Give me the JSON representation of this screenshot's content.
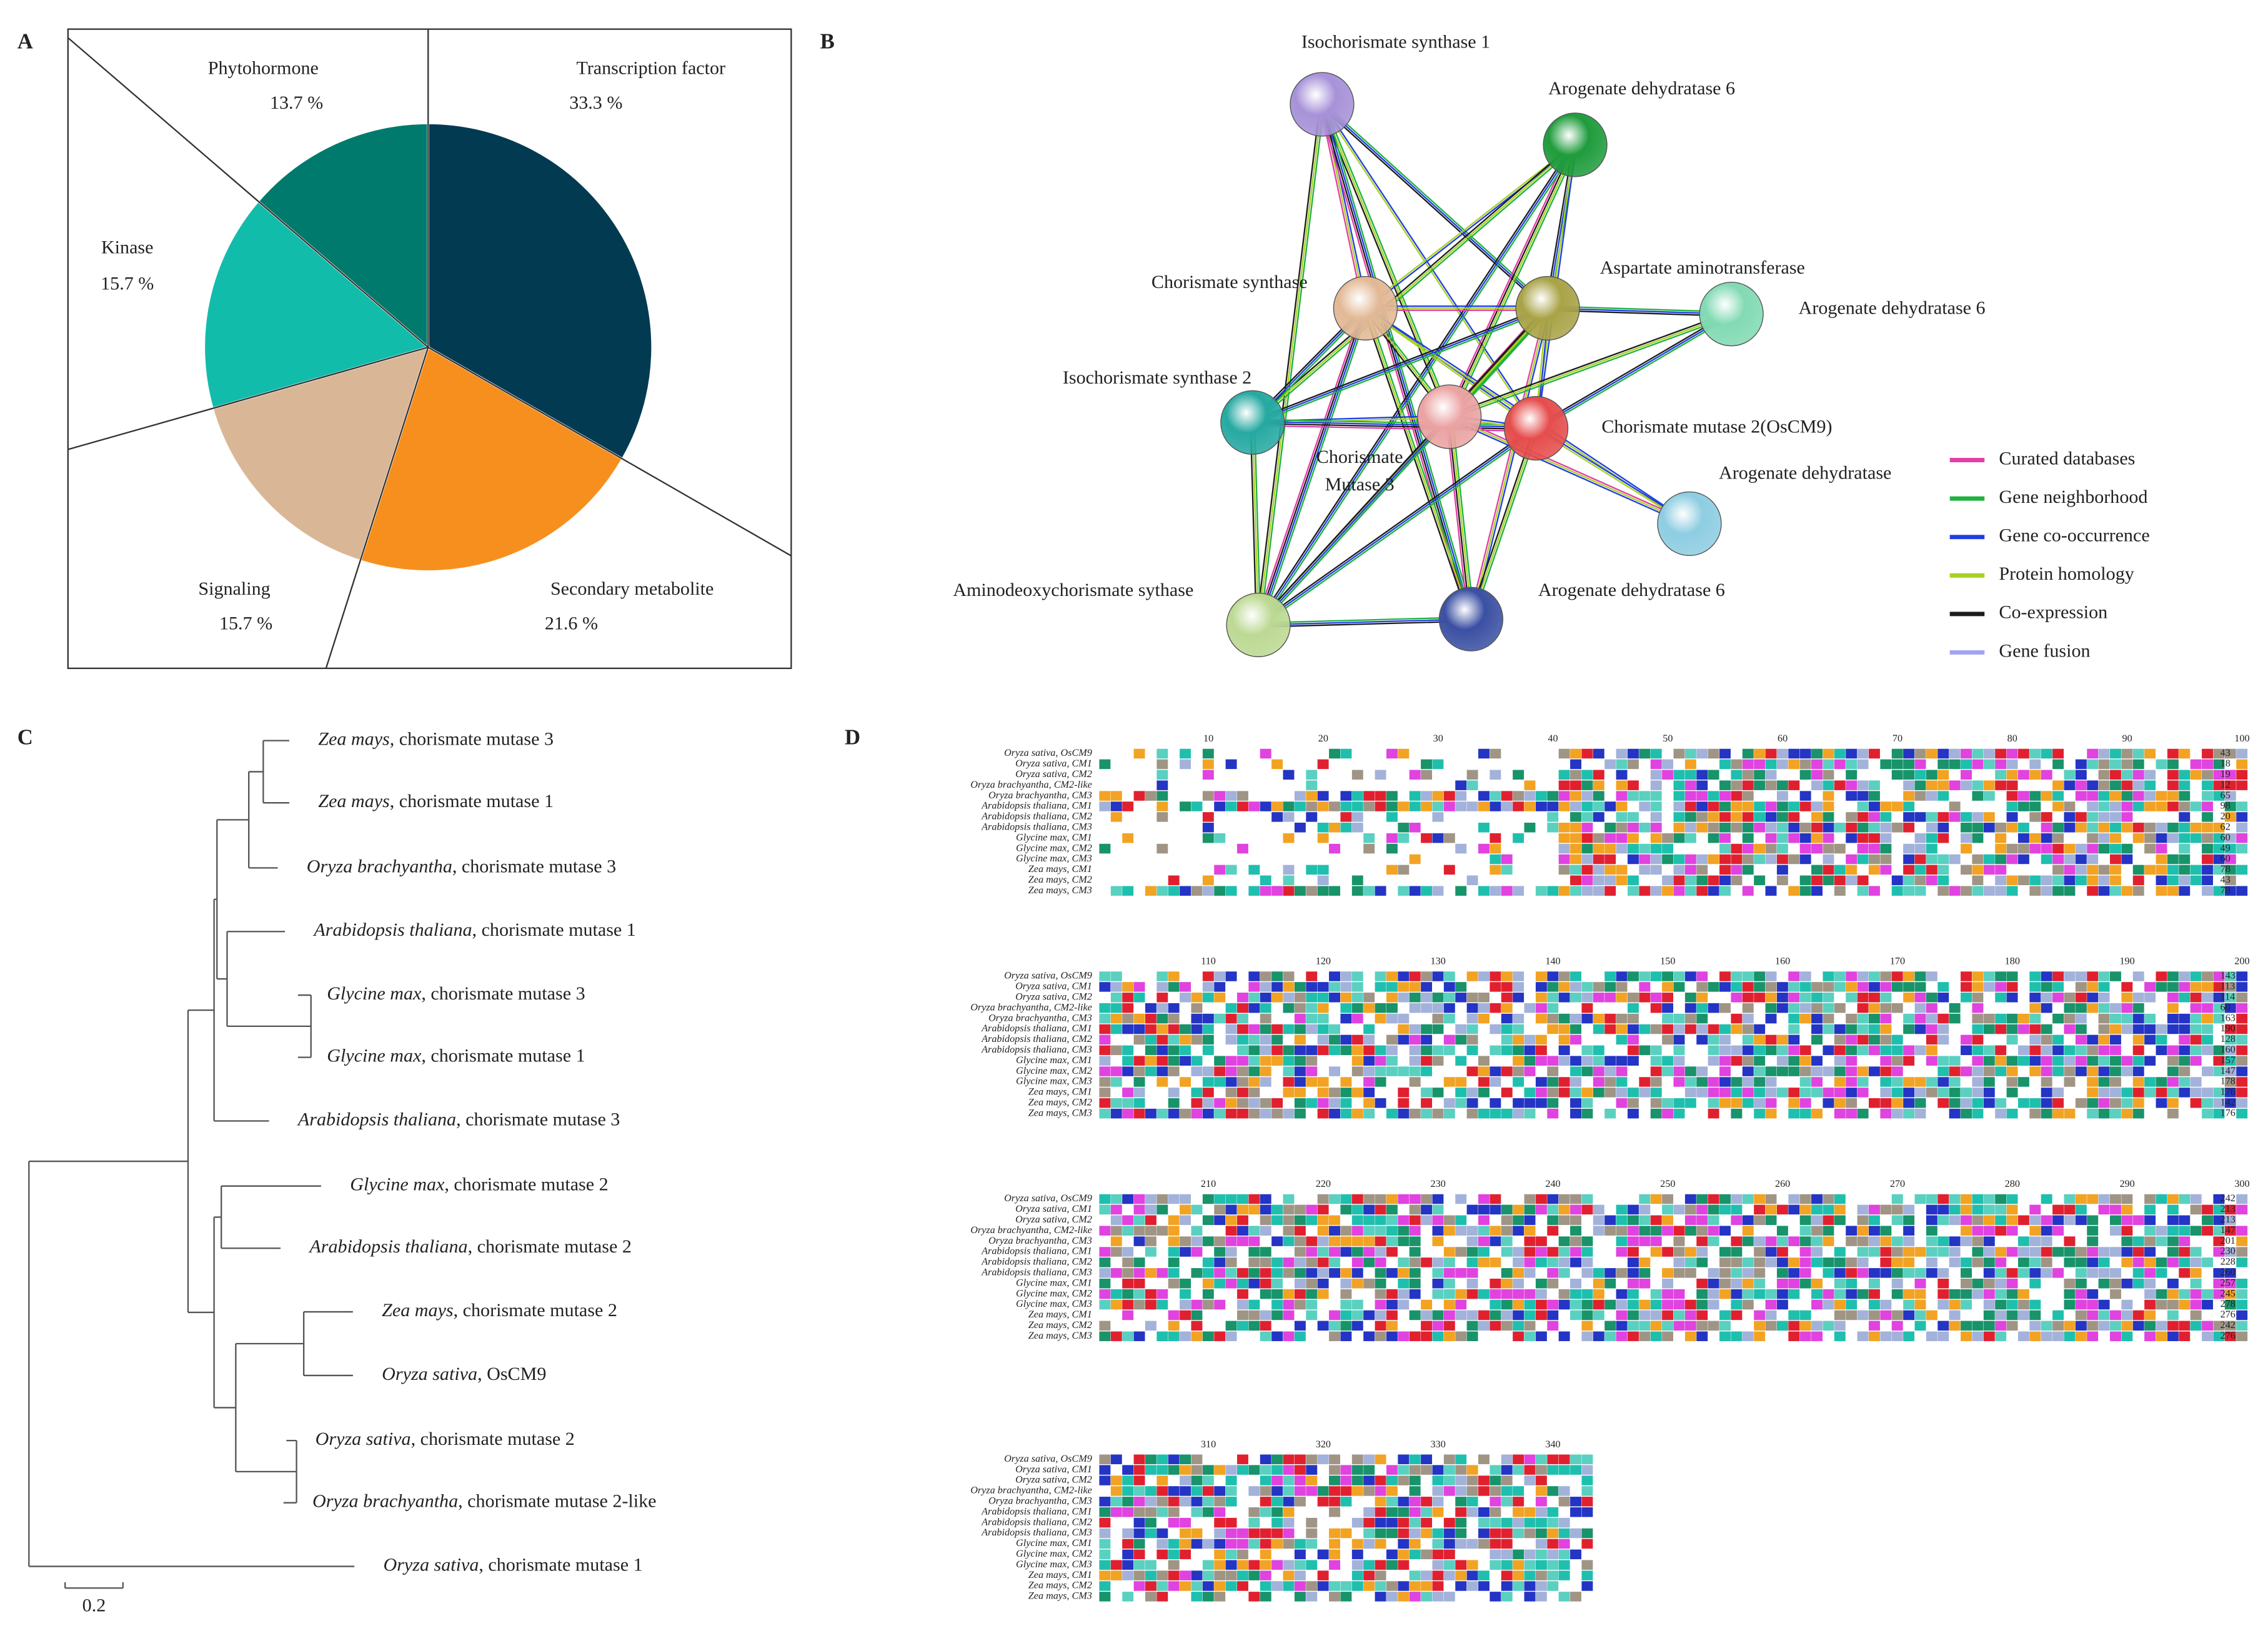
{
  "panels": {
    "a": "A",
    "b": "B",
    "c": "C",
    "d": "D"
  },
  "chart_data": {
    "type": "pie",
    "categories": [
      "Transcription factor",
      "Secondary metabolite",
      "Signaling",
      "Kinase",
      "Phytohormone"
    ],
    "values": [
      33.3,
      21.6,
      15.7,
      15.7,
      13.7
    ],
    "value_labels": [
      "33.3 %",
      "21.6 %",
      "15.7 %",
      "15.7 %",
      "13.7 %"
    ],
    "colors": [
      "#023a52",
      "#f78f1e",
      "#d9b796",
      "#12bcab",
      "#007a6c"
    ]
  },
  "network": {
    "nodes": [
      {
        "label": [
          "Isochorismate synthase 1"
        ],
        "color": "#a792d8"
      },
      {
        "label": [
          "Arogenate dehydratase 6"
        ],
        "color": "#1f9c3c"
      },
      {
        "label": [
          "Chorismate synthase"
        ],
        "color": "#e2b996"
      },
      {
        "label": [
          "Aspartate aminotransferase"
        ],
        "color": "#a9a347"
      },
      {
        "label": [
          "Arogenate dehydratase 6"
        ],
        "color": "#82dab4"
      },
      {
        "label": [
          "Isochorismate synthase 2"
        ],
        "color": "#26a9a2"
      },
      {
        "label": [
          "Chorismate",
          "Mutase 3"
        ],
        "color": "#eba3a3"
      },
      {
        "label": [
          "Chorismate mutase 2(OsCM9)"
        ],
        "color": "#e64d4d"
      },
      {
        "label": [
          "Arogenate dehydratase"
        ],
        "color": "#8ecde2"
      },
      {
        "label": [
          "Aminodeoxychorismate sythase"
        ],
        "color": "#bcd993"
      },
      {
        "label": [
          "Arogenate dehydratase 6"
        ],
        "color": "#3b50a3"
      }
    ],
    "legend": [
      {
        "label": "Curated databases",
        "color": "#e23fa4"
      },
      {
        "label": "Gene neighborhood",
        "color": "#1fb23f"
      },
      {
        "label": "Gene co-occurrence",
        "color": "#1f3fe0"
      },
      {
        "label": "Protein homology",
        "color": "#a9d11f"
      },
      {
        "label": "Co-expression",
        "color": "#1c1c1c"
      },
      {
        "label": "Gene fusion",
        "color": "#a3a3f2"
      }
    ]
  },
  "tree": {
    "leaves": [
      {
        "species": "Zea mays",
        "gene": ", chorismate mutase 3"
      },
      {
        "species": "Zea mays",
        "gene": ", chorismate mutase 1"
      },
      {
        "species": "Oryza brachyantha",
        "gene": ", chorismate mutase 3"
      },
      {
        "species": "Arabidopsis thaliana",
        "gene": ", chorismate mutase 1"
      },
      {
        "species": "Glycine max",
        "gene": ", chorismate mutase 3"
      },
      {
        "species": "Glycine max",
        "gene": ", chorismate mutase 1"
      },
      {
        "species": "Arabidopsis thaliana",
        "gene": ", chorismate mutase 3"
      },
      {
        "species": "Glycine max",
        "gene": ", chorismate mutase 2"
      },
      {
        "species": "Arabidopsis thaliana",
        "gene": ", chorismate mutase 2"
      },
      {
        "species": "Zea mays",
        "gene": ", chorismate mutase 2"
      },
      {
        "species": "Oryza sativa",
        "gene": ", OsCM9"
      },
      {
        "species": "Oryza sativa",
        "gene": ", chorismate mutase 2"
      },
      {
        "species": "Oryza brachyantha",
        "gene": ", chorismate mutase 2-like"
      },
      {
        "species": "Oryza sativa",
        "gene": ", chorismate mutase 1"
      }
    ],
    "scale_label": "0.2"
  },
  "alignment": {
    "sequences": [
      "Oryza sativa, OsCM9",
      "Oryza sativa, CM1",
      "Oryza sativa, CM2",
      "Oryza brachyantha, CM2-like",
      "Oryza brachyantha, CM3",
      "Arabidopsis thaliana, CM1",
      "Arabidopsis thaliana, CM2",
      "Arabidopsis thaliana, CM3",
      "Glycine max, CM1",
      "Glycine max, CM2",
      "Glycine max, CM3",
      "Zea mays, CM1",
      "Zea mays, CM2",
      "Zea mays, CM3"
    ],
    "blocks": [
      {
        "positions": [
          10,
          20,
          30,
          40,
          50,
          60,
          70,
          80,
          90,
          100
        ],
        "ends": [
          43,
          18,
          19,
          12,
          65,
          98,
          20,
          62,
          60,
          49,
          60,
          78,
          43,
          78
        ]
      },
      {
        "positions": [
          110,
          120,
          130,
          140,
          150,
          160,
          170,
          180,
          190,
          200
        ],
        "ends": [
          143,
          113,
          114,
          60,
          163,
          190,
          128,
          160,
          157,
          147,
          178,
          176,
          142,
          176
        ]
      },
      {
        "positions": [
          210,
          220,
          230,
          240,
          250,
          260,
          270,
          280,
          290,
          300
        ],
        "ends": [
          242,
          213,
          213,
          147,
          201,
          230,
          228,
          260,
          257,
          245,
          278,
          276,
          242,
          276
        ]
      },
      {
        "positions": [
          310,
          320,
          330,
          340
        ]
      }
    ]
  }
}
